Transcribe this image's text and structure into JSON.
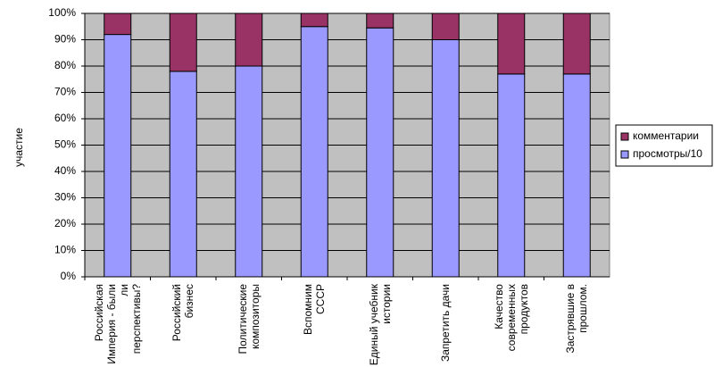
{
  "chart_data": {
    "type": "stacked_bar_100",
    "y_label": "участие",
    "categories": [
      "Российская Империя - были ли перспективы?",
      "Российский бизнес",
      "Политические композиторы",
      "Вспомним СССР",
      "Единый учебник истории",
      "Запретить дачи",
      "Качество современных продуктов",
      "Застрявшие в прошлом."
    ],
    "series": [
      {
        "name": "просмотры/10",
        "color": "#9999ff",
        "values": [
          92,
          78,
          80,
          95,
          94.5,
          90,
          77,
          77
        ]
      },
      {
        "name": "комментарии",
        "color": "#993366",
        "values": [
          8,
          22,
          20,
          5,
          5.5,
          10,
          23,
          23
        ]
      }
    ],
    "ylim": [
      0,
      100
    ],
    "yticks": [
      {
        "value": 0,
        "label": "0%"
      },
      {
        "value": 10,
        "label": "10%"
      },
      {
        "value": 20,
        "label": "20%"
      },
      {
        "value": 30,
        "label": "30%"
      },
      {
        "value": 40,
        "label": "40%"
      },
      {
        "value": 50,
        "label": "50%"
      },
      {
        "value": 60,
        "label": "60%"
      },
      {
        "value": 70,
        "label": "70%"
      },
      {
        "value": 80,
        "label": "80%"
      },
      {
        "value": 90,
        "label": "90%"
      },
      {
        "value": 100,
        "label": "100%"
      }
    ],
    "grid": true,
    "legend": "right",
    "plot_background": "#c0c0c0"
  }
}
